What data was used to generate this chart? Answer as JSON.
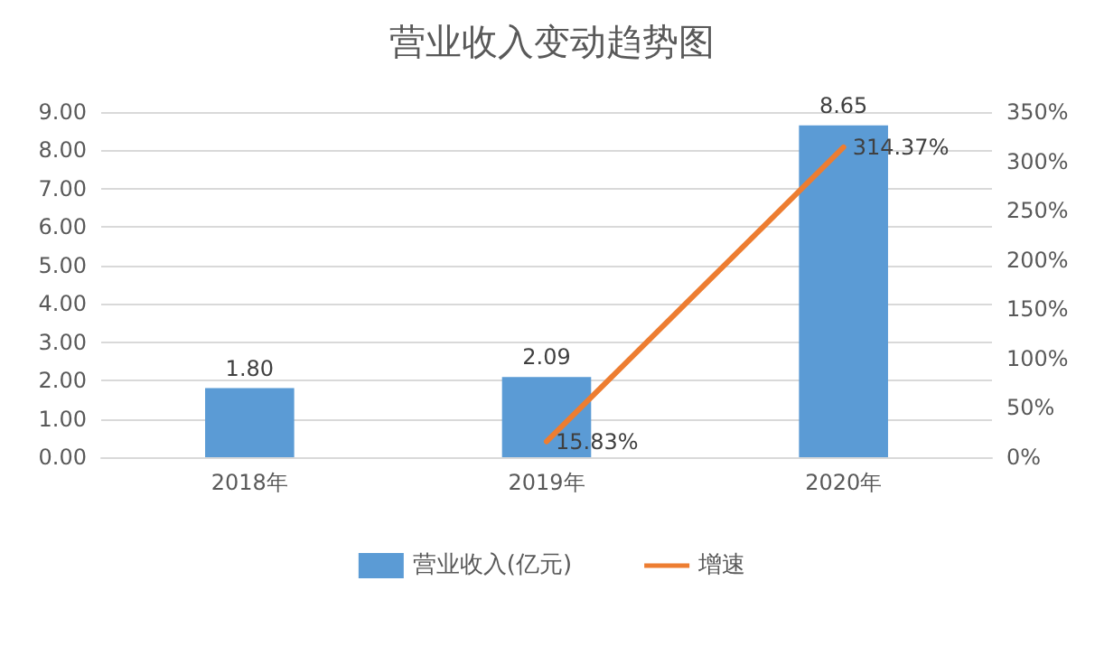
{
  "chart_data": {
    "type": "bar",
    "title": "营业收入变动趋势图",
    "categories": [
      "2018年",
      "2019年",
      "2020年"
    ],
    "series": [
      {
        "name": "营业收入(亿元)",
        "color": "#5b9bd5",
        "values": [
          1.8,
          2.09,
          8.65
        ],
        "value_labels": [
          "1.80",
          "2.09",
          "8.65"
        ]
      },
      {
        "name": "增速",
        "type": "line",
        "axis": "y2",
        "color": "#ed7d31",
        "values": [
          null,
          15.83,
          314.37
        ],
        "value_labels": [
          null,
          "15.83%",
          "314.37%"
        ],
        "marker": "none",
        "line_style": "solid"
      }
    ],
    "ylim": [
      0,
      9
    ],
    "yticks": [
      {
        "value": 0,
        "label": "0.00"
      },
      {
        "value": 1,
        "label": "1.00"
      },
      {
        "value": 2,
        "label": "2.00"
      },
      {
        "value": 3,
        "label": "3.00"
      },
      {
        "value": 4,
        "label": "4.00"
      },
      {
        "value": 5,
        "label": "5.00"
      },
      {
        "value": 6,
        "label": "6.00"
      },
      {
        "value": 7,
        "label": "7.00"
      },
      {
        "value": 8,
        "label": "8.00"
      },
      {
        "value": 9,
        "label": "9.00"
      }
    ],
    "y2lim": [
      0,
      350
    ],
    "y2ticks": [
      {
        "value": 0,
        "label": "0%"
      },
      {
        "value": 50,
        "label": "50%"
      },
      {
        "value": 100,
        "label": "100%"
      },
      {
        "value": 150,
        "label": "150%"
      },
      {
        "value": 200,
        "label": "200%"
      },
      {
        "value": 250,
        "label": "250%"
      },
      {
        "value": 300,
        "label": "300%"
      },
      {
        "value": 350,
        "label": "350%"
      }
    ],
    "grid": "y",
    "legend": "bottom"
  }
}
